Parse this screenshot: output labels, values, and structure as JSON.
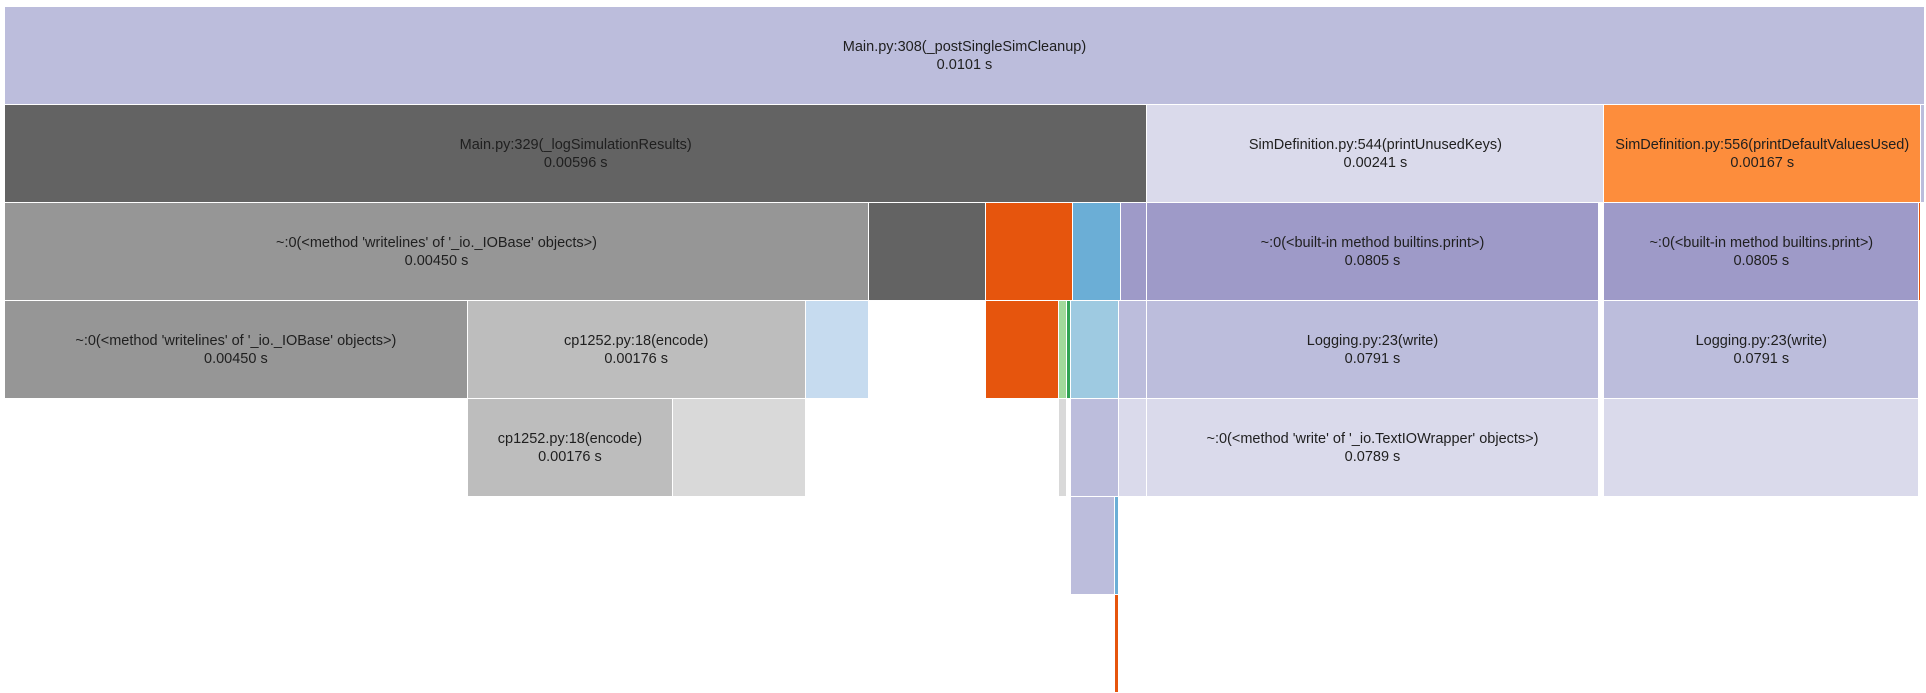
{
  "chart_data": {
    "type": "icicle",
    "title": "",
    "unit": "s",
    "nodes": [
      {
        "id": "n0",
        "depth": 0,
        "start": 0,
        "end": 1,
        "color": "#bcbddc",
        "label": "Main.py:308(_postSingleSimCleanup)",
        "time": "0.0101 s"
      },
      {
        "id": "n1",
        "depth": 1,
        "start": 0,
        "end": 0.595,
        "color": "#636363",
        "label": "Main.py:329(_logSimulationResults)",
        "time": "0.00596 s"
      },
      {
        "id": "n2",
        "depth": 1,
        "start": 0.595,
        "end": 0.833,
        "color": "#dadaeb",
        "label": "SimDefinition.py:544(printUnusedKeys)",
        "time": "0.00241 s"
      },
      {
        "id": "n3",
        "depth": 1,
        "start": 0.833,
        "end": 0.998,
        "color": "#fd8d3c",
        "label": "SimDefinition.py:556(printDefaultValuesUsed)",
        "time": "0.00167 s"
      },
      {
        "id": "n4",
        "depth": 1,
        "start": 0.998,
        "end": 1,
        "color": "#bcbddc",
        "label": "",
        "time": ""
      },
      {
        "id": "n5",
        "depth": 2,
        "start": 0,
        "end": 0.45,
        "color": "#969696",
        "label": "~:0(<method 'writelines' of '_io._IOBase' objects>)",
        "time": "0.00450 s"
      },
      {
        "id": "n6",
        "depth": 2,
        "start": 0.45,
        "end": 0.511,
        "color": "#636363",
        "label": "",
        "time": ""
      },
      {
        "id": "n7",
        "depth": 2,
        "start": 0.511,
        "end": 0.556,
        "color": "#e6550d",
        "label": "",
        "time": ""
      },
      {
        "id": "n8",
        "depth": 2,
        "start": 0.556,
        "end": 0.581,
        "color": "#6baed6",
        "label": "",
        "time": ""
      },
      {
        "id": "n9",
        "depth": 2,
        "start": 0.581,
        "end": 0.595,
        "color": "#9e9ac8",
        "label": "",
        "time": ""
      },
      {
        "id": "n10",
        "depth": 2,
        "start": 0.595,
        "end": 0.83,
        "color": "#9e9ac8",
        "label": "~:0(<built-in method builtins.print>)",
        "time": "0.0805 s"
      },
      {
        "id": "n11",
        "depth": 2,
        "start": 0.833,
        "end": 0.997,
        "color": "#9e9ac8",
        "label": "~:0(<built-in method builtins.print>)",
        "time": "0.0805 s"
      },
      {
        "id": "n12",
        "depth": 2,
        "start": 0.997,
        "end": 0.998,
        "color": "#e6550d",
        "label": "",
        "time": ""
      },
      {
        "id": "n13",
        "depth": 3,
        "start": 0,
        "end": 0.241,
        "color": "#969696",
        "label": "~:0(<method 'writelines' of '_io._IOBase' objects>)",
        "time": "0.00450 s"
      },
      {
        "id": "n14",
        "depth": 3,
        "start": 0.241,
        "end": 0.417,
        "color": "#bdbdbd",
        "label": "cp1252.py:18(encode)",
        "time": "0.00176 s"
      },
      {
        "id": "n15",
        "depth": 3,
        "start": 0.417,
        "end": 0.45,
        "color": "#c6dbef",
        "label": "",
        "time": ""
      },
      {
        "id": "n16",
        "depth": 3,
        "start": 0.511,
        "end": 0.549,
        "color": "#e6550d",
        "label": "",
        "time": ""
      },
      {
        "id": "n17",
        "depth": 3,
        "start": 0.549,
        "end": 0.553,
        "color": "#a1d99b",
        "label": "",
        "time": ""
      },
      {
        "id": "n18",
        "depth": 3,
        "start": 0.553,
        "end": 0.555,
        "color": "#31a354",
        "label": "",
        "time": ""
      },
      {
        "id": "n19",
        "depth": 3,
        "start": 0.555,
        "end": 0.58,
        "color": "#9ecae1",
        "label": "",
        "time": ""
      },
      {
        "id": "n20",
        "depth": 3,
        "start": 0.58,
        "end": 0.595,
        "color": "#bcbddc",
        "label": "",
        "time": ""
      },
      {
        "id": "n21",
        "depth": 3,
        "start": 0.595,
        "end": 0.83,
        "color": "#bcbddc",
        "label": "Logging.py:23(write)",
        "time": "0.0791 s"
      },
      {
        "id": "n22",
        "depth": 3,
        "start": 0.833,
        "end": 0.997,
        "color": "#bcbddc",
        "label": "Logging.py:23(write)",
        "time": "0.0791 s"
      },
      {
        "id": "n23",
        "depth": 4,
        "start": 0.241,
        "end": 0.348,
        "color": "#bdbdbd",
        "label": "cp1252.py:18(encode)",
        "time": "0.00176 s"
      },
      {
        "id": "n24",
        "depth": 4,
        "start": 0.348,
        "end": 0.417,
        "color": "#d9d9d9",
        "label": "",
        "time": ""
      },
      {
        "id": "n25",
        "depth": 4,
        "start": 0.549,
        "end": 0.553,
        "color": "#d9d9d9",
        "label": "",
        "time": ""
      },
      {
        "id": "n26",
        "depth": 4,
        "start": 0.555,
        "end": 0.58,
        "color": "#bcbddc",
        "label": "",
        "time": ""
      },
      {
        "id": "n27",
        "depth": 4,
        "start": 0.58,
        "end": 0.595,
        "color": "#dadaeb",
        "label": "",
        "time": ""
      },
      {
        "id": "n28",
        "depth": 4,
        "start": 0.595,
        "end": 0.83,
        "color": "#dadaeb",
        "label": "~:0(<method 'write' of '_io.TextIOWrapper' objects>)",
        "time": "0.0789 s"
      },
      {
        "id": "n29",
        "depth": 4,
        "start": 0.833,
        "end": 0.997,
        "color": "#dadaeb",
        "label": "",
        "time": ""
      },
      {
        "id": "n30",
        "depth": 5,
        "start": 0.555,
        "end": 0.578,
        "color": "#bcbddc",
        "label": "",
        "time": ""
      },
      {
        "id": "n31",
        "depth": 5,
        "start": 0.578,
        "end": 0.58,
        "color": "#6baed6",
        "label": "",
        "time": ""
      },
      {
        "id": "n32",
        "depth": 6,
        "start": 0.578,
        "end": 0.58,
        "color": "#e6550d",
        "label": "",
        "time": ""
      }
    ]
  }
}
